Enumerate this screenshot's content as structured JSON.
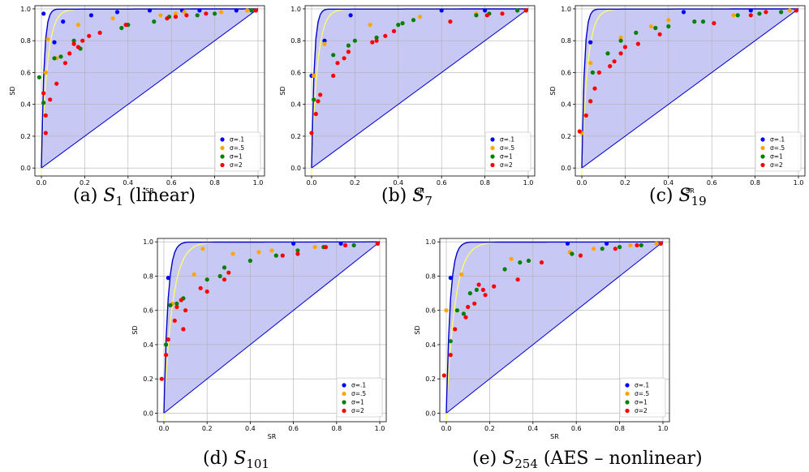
{
  "colors": {
    "sigma_01": "#0000ff",
    "sigma_05": "#ffa500",
    "sigma_1": "#008000",
    "sigma_2": "#ff0000",
    "fill": "#c8c8f5",
    "curve_blue": "#0000cc",
    "curve_yellow": "#ffff66",
    "grid": "#b0b0b0"
  },
  "chart_data": [
    {
      "type": "scatter",
      "caption": {
        "tag": "(a)",
        "symbol": "S",
        "sub": "1",
        "note": "(linear)"
      },
      "xlabel": "SR",
      "ylabel": "SD",
      "xlim": [
        -0.03,
        1.03
      ],
      "ylim": [
        -0.05,
        1.02
      ],
      "xticks": [
        "0.0",
        "0.2",
        "0.4",
        "0.6",
        "0.8",
        "1.0"
      ],
      "yticks": [
        "0.0",
        "0.2",
        "0.4",
        "0.6",
        "0.8",
        "1.0"
      ],
      "grid": true,
      "legend_position": "lower-right",
      "series": [
        {
          "name": "σ=.1",
          "color_key": "sigma_01",
          "points": [
            [
              0.01,
              0.97
            ],
            [
              0.06,
              0.79
            ],
            [
              0.1,
              0.92
            ],
            [
              0.23,
              0.96
            ],
            [
              0.35,
              0.98
            ],
            [
              0.5,
              0.99
            ],
            [
              0.65,
              0.99
            ],
            [
              0.73,
              0.99
            ],
            [
              0.9,
              0.99
            ],
            [
              0.99,
              0.99
            ]
          ]
        },
        {
          "name": "σ=.5",
          "color_key": "sigma_05",
          "points": [
            [
              0.02,
              0.6
            ],
            [
              0.03,
              0.81
            ],
            [
              0.07,
              0.69
            ],
            [
              0.17,
              0.9
            ],
            [
              0.33,
              0.94
            ],
            [
              0.55,
              0.96
            ],
            [
              0.62,
              0.97
            ],
            [
              0.66,
              0.98
            ],
            [
              0.83,
              0.98
            ],
            [
              0.95,
              0.99
            ],
            [
              0.99,
              0.99
            ]
          ]
        },
        {
          "name": "σ=1",
          "color_key": "sigma_1",
          "points": [
            [
              -0.01,
              0.57
            ],
            [
              0.01,
              0.41
            ],
            [
              0.06,
              0.69
            ],
            [
              0.09,
              0.7
            ],
            [
              0.15,
              0.8
            ],
            [
              0.18,
              0.75
            ],
            [
              0.37,
              0.88
            ],
            [
              0.4,
              0.9
            ],
            [
              0.52,
              0.92
            ],
            [
              0.59,
              0.95
            ],
            [
              0.72,
              0.96
            ],
            [
              0.8,
              0.97
            ],
            [
              0.97,
              0.99
            ]
          ]
        },
        {
          "name": "σ=2",
          "color_key": "sigma_2",
          "points": [
            [
              0.01,
              0.47
            ],
            [
              0.02,
              0.22
            ],
            [
              0.02,
              0.33
            ],
            [
              0.04,
              0.43
            ],
            [
              0.07,
              0.53
            ],
            [
              0.11,
              0.66
            ],
            [
              0.13,
              0.72
            ],
            [
              0.15,
              0.78
            ],
            [
              0.17,
              0.76
            ],
            [
              0.19,
              0.8
            ],
            [
              0.22,
              0.83
            ],
            [
              0.27,
              0.85
            ],
            [
              0.39,
              0.9
            ],
            [
              0.58,
              0.94
            ],
            [
              0.62,
              0.95
            ],
            [
              0.67,
              0.96
            ],
            [
              0.76,
              0.97
            ],
            [
              0.99,
              0.99
            ]
          ]
        }
      ]
    },
    {
      "type": "scatter",
      "caption": {
        "tag": "(b)",
        "symbol": "S",
        "sub": "7",
        "note": ""
      },
      "xlabel": "SR",
      "ylabel": "SD",
      "xlim": [
        -0.03,
        1.03
      ],
      "ylim": [
        -0.05,
        1.02
      ],
      "xticks": [
        "0.0",
        "0.2",
        "0.4",
        "0.6",
        "0.8",
        "1.0"
      ],
      "yticks": [
        "0.0",
        "0.2",
        "0.4",
        "0.6",
        "0.8",
        "1.0"
      ],
      "grid": true,
      "legend_position": "lower-right",
      "series": [
        {
          "name": "σ=.1",
          "color_key": "sigma_01",
          "points": [
            [
              0.0,
              0.58
            ],
            [
              0.06,
              0.8
            ],
            [
              0.18,
              0.96
            ],
            [
              0.6,
              0.99
            ],
            [
              0.8,
              0.99
            ],
            [
              0.99,
              0.99
            ]
          ]
        },
        {
          "name": "σ=.5",
          "color_key": "sigma_05",
          "points": [
            [
              0.01,
              0.58
            ],
            [
              0.06,
              0.78
            ],
            [
              0.27,
              0.9
            ],
            [
              0.5,
              0.95
            ],
            [
              0.76,
              0.97
            ],
            [
              0.99,
              0.99
            ]
          ]
        },
        {
          "name": "σ=1",
          "color_key": "sigma_1",
          "points": [
            [
              0.01,
              0.43
            ],
            [
              0.1,
              0.71
            ],
            [
              0.17,
              0.77
            ],
            [
              0.2,
              0.8
            ],
            [
              0.3,
              0.82
            ],
            [
              0.4,
              0.9
            ],
            [
              0.42,
              0.91
            ],
            [
              0.47,
              0.93
            ],
            [
              0.76,
              0.96
            ],
            [
              0.82,
              0.97
            ],
            [
              0.95,
              0.99
            ]
          ]
        },
        {
          "name": "σ=2",
          "color_key": "sigma_2",
          "points": [
            [
              0.0,
              0.22
            ],
            [
              0.02,
              0.34
            ],
            [
              0.03,
              0.42
            ],
            [
              0.04,
              0.46
            ],
            [
              0.1,
              0.58
            ],
            [
              0.12,
              0.66
            ],
            [
              0.15,
              0.69
            ],
            [
              0.17,
              0.73
            ],
            [
              0.28,
              0.79
            ],
            [
              0.3,
              0.8
            ],
            [
              0.34,
              0.83
            ],
            [
              0.38,
              0.86
            ],
            [
              0.64,
              0.92
            ],
            [
              0.81,
              0.96
            ],
            [
              0.88,
              0.97
            ],
            [
              0.99,
              0.99
            ]
          ]
        }
      ]
    },
    {
      "type": "scatter",
      "caption": {
        "tag": "(c)",
        "symbol": "S",
        "sub": "19",
        "note": ""
      },
      "xlabel": "SR",
      "ylabel": "SD",
      "xlim": [
        -0.03,
        1.03
      ],
      "ylim": [
        -0.05,
        1.02
      ],
      "xticks": [
        "0.0",
        "0.2",
        "0.4",
        "0.6",
        "0.8",
        "1.0"
      ],
      "yticks": [
        "0.0",
        "0.2",
        "0.4",
        "0.6",
        "0.8",
        "1.0"
      ],
      "grid": true,
      "legend_position": "lower-right",
      "series": [
        {
          "name": "σ=.1",
          "color_key": "sigma_01",
          "points": [
            [
              0.04,
              0.79
            ],
            [
              0.47,
              0.98
            ],
            [
              0.78,
              0.99
            ],
            [
              0.99,
              0.99
            ]
          ]
        },
        {
          "name": "σ=.5",
          "color_key": "sigma_05",
          "points": [
            [
              0.0,
              0.22
            ],
            [
              0.04,
              0.66
            ],
            [
              0.18,
              0.82
            ],
            [
              0.32,
              0.89
            ],
            [
              0.4,
              0.93
            ],
            [
              0.7,
              0.96
            ],
            [
              0.96,
              0.99
            ]
          ]
        },
        {
          "name": "σ=1",
          "color_key": "sigma_1",
          "points": [
            [
              0.05,
              0.6
            ],
            [
              0.04,
              0.42
            ],
            [
              0.12,
              0.72
            ],
            [
              0.18,
              0.8
            ],
            [
              0.25,
              0.85
            ],
            [
              0.34,
              0.88
            ],
            [
              0.4,
              0.89
            ],
            [
              0.52,
              0.92
            ],
            [
              0.56,
              0.92
            ],
            [
              0.72,
              0.96
            ],
            [
              0.82,
              0.97
            ],
            [
              0.92,
              0.98
            ]
          ]
        },
        {
          "name": "σ=2",
          "color_key": "sigma_2",
          "points": [
            [
              -0.01,
              0.23
            ],
            [
              0.02,
              0.33
            ],
            [
              0.04,
              0.42
            ],
            [
              0.06,
              0.5
            ],
            [
              0.08,
              0.6
            ],
            [
              0.13,
              0.64
            ],
            [
              0.15,
              0.67
            ],
            [
              0.18,
              0.72
            ],
            [
              0.2,
              0.76
            ],
            [
              0.26,
              0.78
            ],
            [
              0.36,
              0.84
            ],
            [
              0.61,
              0.91
            ],
            [
              0.78,
              0.96
            ],
            [
              0.85,
              0.98
            ],
            [
              0.99,
              0.99
            ]
          ]
        }
      ]
    },
    {
      "type": "scatter",
      "caption": {
        "tag": "(d)",
        "symbol": "S",
        "sub": "101",
        "note": ""
      },
      "xlabel": "SR",
      "ylabel": "SD",
      "xlim": [
        -0.03,
        1.03
      ],
      "ylim": [
        -0.05,
        1.02
      ],
      "xticks": [
        "0.0",
        "0.2",
        "0.4",
        "0.6",
        "0.8",
        "1.0"
      ],
      "yticks": [
        "0.0",
        "0.2",
        "0.4",
        "0.6",
        "0.8",
        "1.0"
      ],
      "grid": true,
      "legend_position": "lower-right",
      "series": [
        {
          "name": "σ=.1",
          "color_key": "sigma_01",
          "points": [
            [
              0.02,
              0.79
            ],
            [
              0.6,
              0.99
            ],
            [
              0.82,
              0.99
            ],
            [
              0.99,
              0.99
            ]
          ]
        },
        {
          "name": "σ=.5",
          "color_key": "sigma_05",
          "points": [
            [
              0.04,
              0.64
            ],
            [
              0.14,
              0.81
            ],
            [
              0.18,
              0.96
            ],
            [
              0.32,
              0.93
            ],
            [
              0.44,
              0.94
            ],
            [
              0.5,
              0.95
            ],
            [
              0.7,
              0.97
            ],
            [
              0.84,
              0.98
            ]
          ]
        },
        {
          "name": "σ=1",
          "color_key": "sigma_1",
          "points": [
            [
              0.01,
              0.4
            ],
            [
              0.03,
              0.63
            ],
            [
              0.06,
              0.64
            ],
            [
              0.09,
              0.67
            ],
            [
              0.2,
              0.78
            ],
            [
              0.26,
              0.8
            ],
            [
              0.28,
              0.85
            ],
            [
              0.4,
              0.89
            ],
            [
              0.52,
              0.92
            ],
            [
              0.62,
              0.95
            ],
            [
              0.74,
              0.97
            ],
            [
              0.88,
              0.98
            ]
          ]
        },
        {
          "name": "σ=2",
          "color_key": "sigma_2",
          "points": [
            [
              -0.01,
              0.2
            ],
            [
              0.01,
              0.34
            ],
            [
              0.02,
              0.43
            ],
            [
              0.05,
              0.54
            ],
            [
              0.06,
              0.62
            ],
            [
              0.08,
              0.66
            ],
            [
              0.09,
              0.49
            ],
            [
              0.1,
              0.6
            ],
            [
              0.17,
              0.73
            ],
            [
              0.2,
              0.71
            ],
            [
              0.28,
              0.78
            ],
            [
              0.3,
              0.82
            ],
            [
              0.55,
              0.92
            ],
            [
              0.62,
              0.93
            ],
            [
              0.75,
              0.97
            ],
            [
              0.84,
              0.98
            ],
            [
              0.99,
              0.99
            ]
          ]
        }
      ]
    },
    {
      "type": "scatter",
      "caption": {
        "tag": "(e)",
        "symbol": "S",
        "sub": "254",
        "note": "(AES – nonlinear)"
      },
      "xlabel": "SR",
      "ylabel": "SD",
      "xlim": [
        -0.03,
        1.03
      ],
      "ylim": [
        -0.05,
        1.02
      ],
      "xticks": [
        "0.0",
        "0.2",
        "0.4",
        "0.6",
        "0.8",
        "1.0"
      ],
      "yticks": [
        "0.0",
        "0.2",
        "0.4",
        "0.6",
        "0.8",
        "1.0"
      ],
      "grid": true,
      "legend_position": "lower-right",
      "series": [
        {
          "name": "σ=.1",
          "color_key": "sigma_01",
          "points": [
            [
              0.02,
              0.79
            ],
            [
              0.56,
              0.99
            ],
            [
              0.74,
              0.99
            ],
            [
              0.99,
              0.99
            ]
          ]
        },
        {
          "name": "σ=.5",
          "color_key": "sigma_05",
          "points": [
            [
              0.0,
              0.6
            ],
            [
              0.07,
              0.81
            ],
            [
              0.3,
              0.9
            ],
            [
              0.57,
              0.94
            ],
            [
              0.68,
              0.96
            ],
            [
              0.85,
              0.98
            ],
            [
              0.97,
              0.99
            ]
          ]
        },
        {
          "name": "σ=1",
          "color_key": "sigma_1",
          "points": [
            [
              0.02,
              0.42
            ],
            [
              0.05,
              0.6
            ],
            [
              0.08,
              0.58
            ],
            [
              0.11,
              0.7
            ],
            [
              0.14,
              0.72
            ],
            [
              0.27,
              0.84
            ],
            [
              0.34,
              0.88
            ],
            [
              0.38,
              0.89
            ],
            [
              0.58,
              0.93
            ],
            [
              0.72,
              0.96
            ],
            [
              0.8,
              0.97
            ],
            [
              0.9,
              0.98
            ]
          ]
        },
        {
          "name": "σ=2",
          "color_key": "sigma_2",
          "points": [
            [
              -0.01,
              0.22
            ],
            [
              0.02,
              0.34
            ],
            [
              0.04,
              0.49
            ],
            [
              0.09,
              0.56
            ],
            [
              0.1,
              0.62
            ],
            [
              0.13,
              0.64
            ],
            [
              0.15,
              0.75
            ],
            [
              0.17,
              0.72
            ],
            [
              0.18,
              0.69
            ],
            [
              0.22,
              0.74
            ],
            [
              0.33,
              0.78
            ],
            [
              0.44,
              0.88
            ],
            [
              0.62,
              0.92
            ],
            [
              0.78,
              0.96
            ],
            [
              0.88,
              0.98
            ],
            [
              0.99,
              0.99
            ]
          ]
        }
      ]
    }
  ]
}
